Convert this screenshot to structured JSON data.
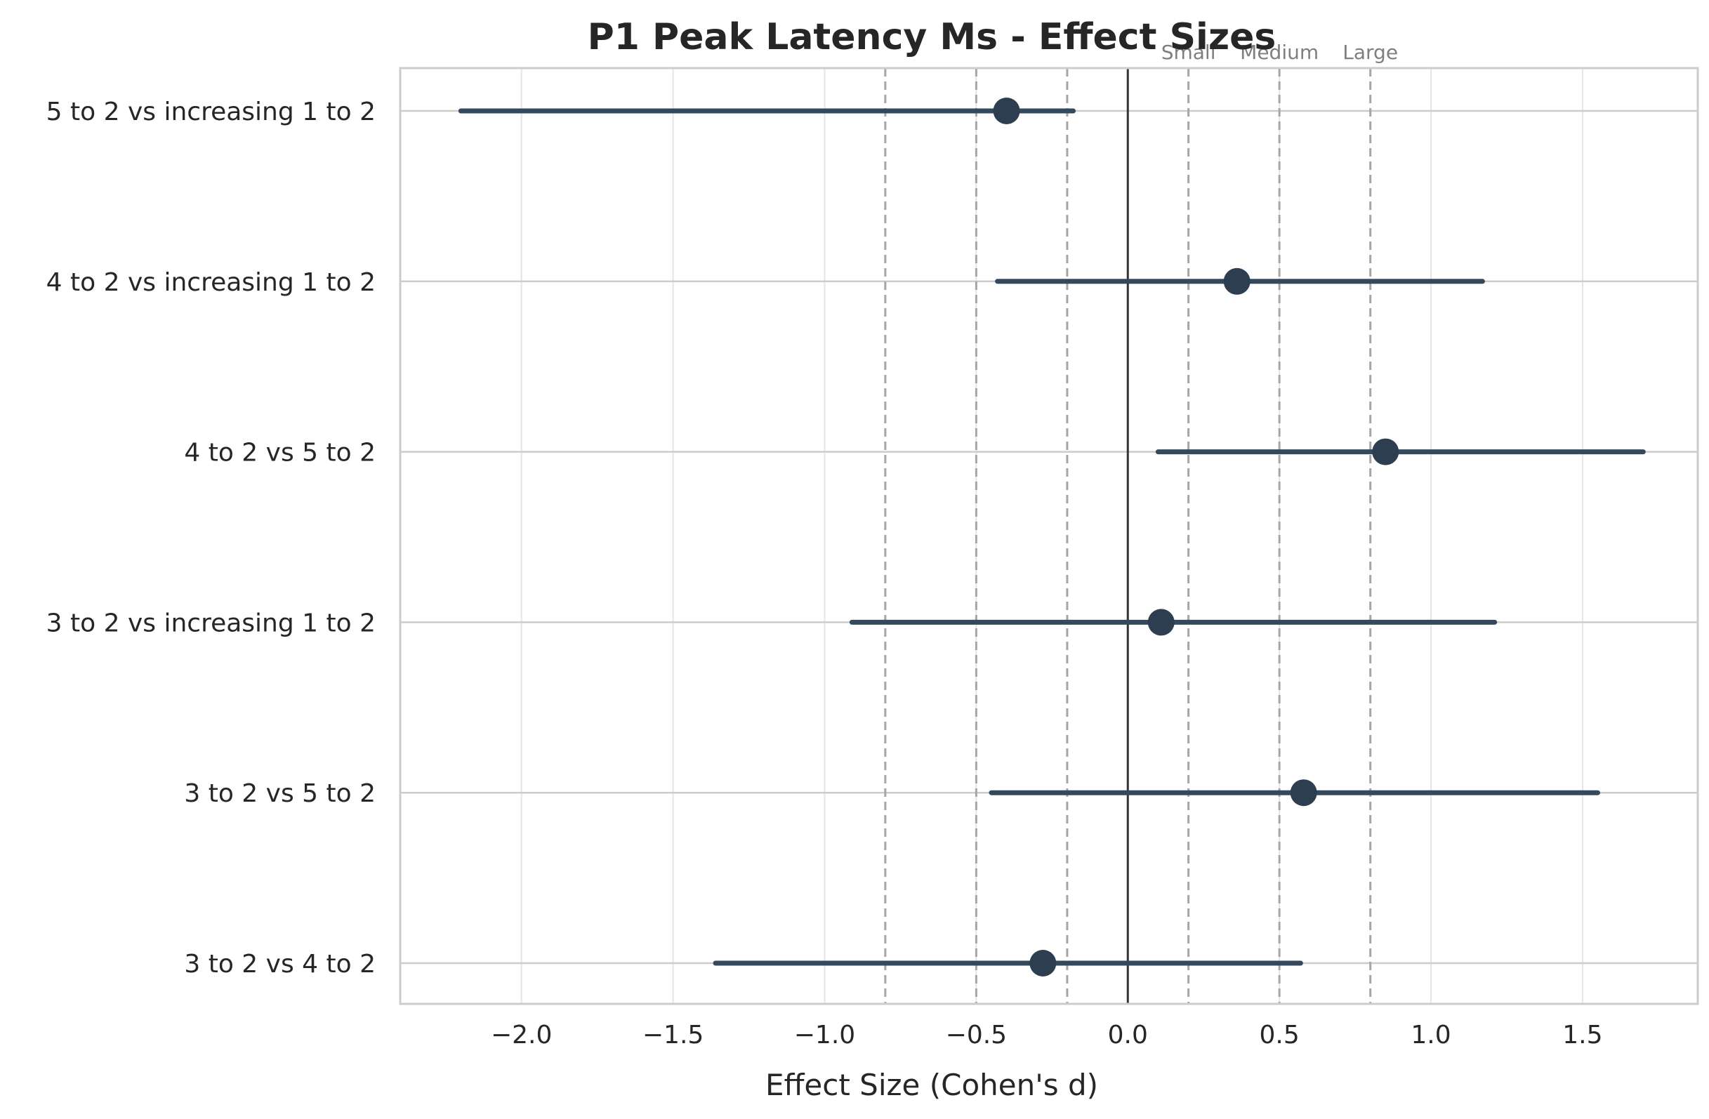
{
  "chart_data": {
    "type": "forest",
    "title": "P1 Peak Latency Ms - Effect Sizes",
    "xlabel": "Effect Size (Cohen's d)",
    "ylabel": "",
    "xlim": [
      -2.4,
      1.88
    ],
    "xticks": [
      -2.0,
      -1.5,
      -1.0,
      -0.5,
      0.0,
      0.5,
      1.0,
      1.5
    ],
    "xtick_labels": [
      "−2.0",
      "−1.5",
      "−1.0",
      "−0.5",
      "0.0",
      "0.5",
      "1.0",
      "1.5"
    ],
    "grid": true,
    "reference_line": 0.0,
    "thresholds": [
      {
        "value": -0.8,
        "label": ""
      },
      {
        "value": -0.5,
        "label": ""
      },
      {
        "value": -0.2,
        "label": ""
      },
      {
        "value": 0.2,
        "label": "Small"
      },
      {
        "value": 0.5,
        "label": "Medium"
      },
      {
        "value": 0.8,
        "label": "Large"
      }
    ],
    "comparisons": [
      {
        "label": "5 to 2 vs increasing 1 to 2",
        "d": -0.4,
        "ci_low": -2.2,
        "ci_high": -0.18
      },
      {
        "label": "4 to 2 vs increasing 1 to 2",
        "d": 0.36,
        "ci_low": -0.43,
        "ci_high": 1.17
      },
      {
        "label": "4 to 2 vs 5 to 2",
        "d": 0.85,
        "ci_low": 0.1,
        "ci_high": 1.7
      },
      {
        "label": "3 to 2 vs increasing 1 to 2",
        "d": 0.11,
        "ci_low": -0.91,
        "ci_high": 1.21
      },
      {
        "label": "3 to 2 vs 5 to 2",
        "d": 0.58,
        "ci_low": -0.45,
        "ci_high": 1.55
      },
      {
        "label": "3 to 2 vs 4 to 2",
        "d": -0.28,
        "ci_low": -1.36,
        "ci_high": 0.57
      }
    ],
    "colors": {
      "marker": "#2c3e50",
      "ci_line": "#34495e",
      "threshold_line": "#a6a6a6",
      "zero_line": "#333333",
      "grid": "#e5e5e5",
      "axes": "#cccccc"
    }
  }
}
